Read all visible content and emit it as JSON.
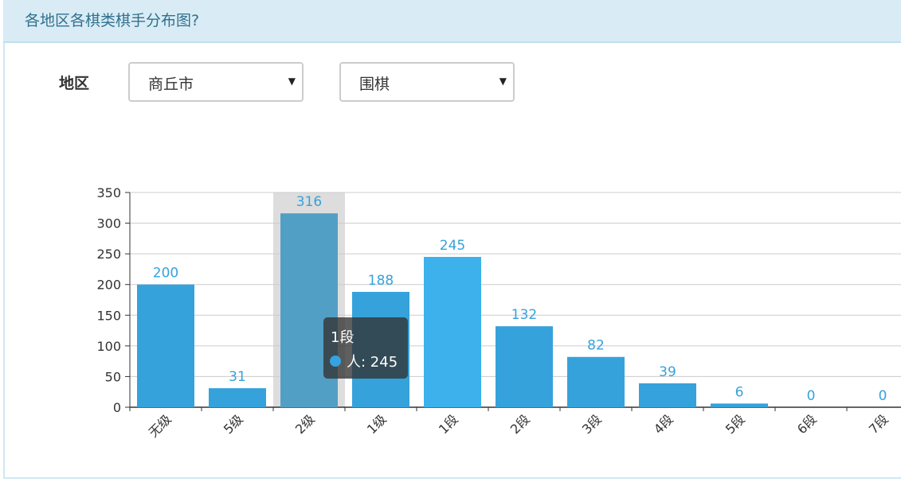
{
  "panel": {
    "title": "各地区各棋类棋手分布图?"
  },
  "filters": {
    "region_label": "地区",
    "region_value": "商丘市",
    "game_value": "围棋"
  },
  "tooltip": {
    "title": "1段",
    "series_name": "人",
    "value": 245,
    "text": "人: 245"
  },
  "colors": {
    "bar": "#36a2db",
    "bar_hover": "#3cb1ec",
    "bar_highlight": "#529fc6",
    "label": "#36a2db",
    "axis_pointer": "#dddddd"
  },
  "chart_data": {
    "type": "bar",
    "categories": [
      "无级",
      "5级",
      "2级",
      "1级",
      "1段",
      "2段",
      "3段",
      "4段",
      "5段",
      "6段",
      "7段"
    ],
    "series": [
      {
        "name": "人",
        "values": [
          200,
          31,
          316,
          188,
          245,
          132,
          82,
          39,
          6,
          0,
          0
        ]
      }
    ],
    "ylim": [
      0,
      350
    ],
    "yticks": [
      0,
      50,
      100,
      150,
      200,
      250,
      300,
      350
    ],
    "grid": true,
    "highlighted_category": "2级",
    "hovered_category": "1段"
  }
}
